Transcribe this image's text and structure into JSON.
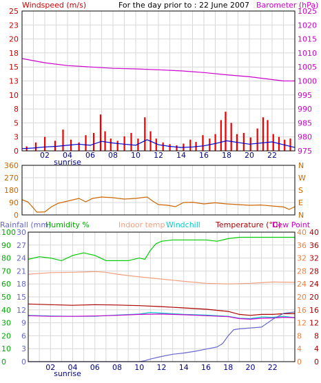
{
  "chart_data": [
    {
      "type": "line",
      "title": "For the day prior to : 22 June 2007",
      "left_axis_label": "Windspeed (m/s)",
      "right_axis_label": "Barometer (hPa)",
      "left_ticks": [
        25,
        23,
        20,
        18,
        15,
        13,
        10,
        8,
        5,
        3,
        0
      ],
      "right_ticks": [
        1025,
        1020,
        1015,
        1010,
        1005,
        1000,
        995,
        990,
        985,
        980,
        975
      ],
      "x_ticks": [
        "02",
        "04",
        "06",
        "08",
        "10",
        "12",
        "14",
        "16",
        "18",
        "20",
        "22"
      ],
      "x_sub_label": "sunrise",
      "hours_range": [
        0,
        24
      ],
      "left_range": [
        0,
        25
      ],
      "right_range": [
        975,
        1025
      ],
      "series": [
        {
          "name": "Barometer (hPa)",
          "color": "#cc00cc",
          "axis": "right",
          "x": [
            0,
            2,
            4,
            6,
            8,
            10,
            12,
            14,
            16,
            18,
            20,
            22,
            23,
            24
          ],
          "y": [
            1008,
            1006.5,
            1005.5,
            1005,
            1004.5,
            1004.3,
            1004,
            1003.6,
            1003,
            1002.2,
            1001.5,
            1000.5,
            1000,
            1000
          ]
        }
      ],
      "bars": {
        "color": "#ee0000",
        "axis": "left",
        "x": [
          0.4,
          1.2,
          2.0,
          2.9,
          3.6,
          4.3,
          5.0,
          5.6,
          6.3,
          6.9,
          7.3,
          7.8,
          8.4,
          9.0,
          9.6,
          10.2,
          10.8,
          11.3,
          11.8,
          12.4,
          13.0,
          13.6,
          14.2,
          14.8,
          15.3,
          15.9,
          16.5,
          17.0,
          17.5,
          17.9,
          18.4,
          18.9,
          19.5,
          20.1,
          20.7,
          21.2,
          21.6,
          22.1,
          22.6,
          23.1,
          23.6
        ],
        "values": [
          0.8,
          1.5,
          2.5,
          1.8,
          3.8,
          2.0,
          1.5,
          2.8,
          3.2,
          6.5,
          3.5,
          2.2,
          1.8,
          2.6,
          3.2,
          2.2,
          6.0,
          3.5,
          2.2,
          1.5,
          1.2,
          1.0,
          1.3,
          2.0,
          1.6,
          2.8,
          2.2,
          3.0,
          5.5,
          7.0,
          5.0,
          3.0,
          3.2,
          2.4,
          4.0,
          6.0,
          5.5,
          3.0,
          2.5,
          2.0,
          2.2
        ]
      },
      "avg_series": {
        "color": "#0000cc",
        "axis": "left",
        "x": [
          0,
          1,
          2,
          3,
          4,
          5,
          6,
          7,
          8,
          9,
          10,
          11,
          12,
          13,
          14,
          15,
          16,
          17,
          18,
          19,
          20,
          21,
          22,
          23,
          24
        ],
        "y": [
          0.4,
          0.5,
          0.7,
          0.8,
          1.0,
          1.2,
          1.0,
          1.7,
          1.4,
          1.2,
          1.0,
          2.0,
          1.1,
          0.8,
          0.6,
          0.7,
          0.9,
          1.3,
          1.8,
          1.5,
          1.2,
          1.4,
          1.6,
          1.1,
          0.6
        ]
      }
    },
    {
      "type": "line",
      "left_ticks": [
        360,
        270,
        180,
        90,
        0
      ],
      "right_ticks": [
        "N",
        "W",
        "S",
        "E",
        "N"
      ],
      "left_range": [
        0,
        360
      ],
      "hours_range": [
        0,
        24
      ],
      "series": [
        {
          "name": "Wind direction",
          "color": "#cc6600",
          "x": [
            0,
            0.5,
            1,
            1.3,
            2,
            2.6,
            3.2,
            4,
            5,
            5.6,
            6.2,
            7,
            8,
            9,
            10,
            11,
            11.5,
            12,
            12.8,
            13.5,
            14.2,
            15,
            16,
            17,
            18,
            19,
            20,
            21,
            22,
            23,
            23.5,
            24
          ],
          "y": [
            110,
            95,
            50,
            20,
            22,
            60,
            85,
            100,
            120,
            95,
            120,
            130,
            125,
            115,
            120,
            130,
            100,
            75,
            70,
            60,
            90,
            92,
            80,
            88,
            80,
            75,
            70,
            72,
            65,
            58,
            40,
            60
          ]
        }
      ]
    },
    {
      "type": "line",
      "left_axis_label": "Rainfall (mm)",
      "humidity_label": "Humidity %",
      "indoor_label": "Indoor temp",
      "windchill_label": "Windchill",
      "temperature_label": "Temperature (°C)",
      "dewpoint_label": "Dew Point",
      "rain_ticks": [
        30,
        27,
        24,
        21,
        18,
        15,
        12,
        9,
        6,
        3,
        0
      ],
      "humidity_ticks": [
        100,
        90,
        80,
        70,
        60,
        50,
        40,
        30,
        20,
        10,
        0
      ],
      "temp_left_ticks": [
        40,
        36,
        32,
        28,
        24,
        20,
        16,
        12,
        8,
        4,
        0
      ],
      "temp_right_ticks": [
        40,
        36,
        32,
        28,
        24,
        20,
        16,
        12,
        8,
        4,
        0
      ],
      "x_ticks": [
        "02",
        "04",
        "06",
        "08",
        "10",
        "12",
        "14",
        "16",
        "18",
        "20",
        "22"
      ],
      "x_sub_label": "sunrise",
      "hours_range": [
        0,
        24
      ],
      "humidity_range": [
        0,
        100
      ],
      "temp_range": [
        0,
        40
      ],
      "series": [
        {
          "name": "Humidity %",
          "color": "#00cc00",
          "scale": "humidity",
          "x": [
            0,
            1,
            2,
            3,
            4,
            5,
            6,
            7,
            8,
            9,
            10,
            10.5,
            11,
            11.5,
            12,
            13,
            14,
            15,
            16,
            17,
            18,
            19,
            20,
            21,
            22,
            23,
            24
          ],
          "y": [
            79,
            81,
            80,
            78,
            82,
            84,
            82,
            78,
            78,
            78,
            80,
            79,
            86,
            91,
            93,
            94,
            94,
            94,
            94,
            93,
            95,
            96,
            96,
            96,
            96,
            96,
            96
          ]
        },
        {
          "name": "Indoor temp",
          "color": "#f0a080",
          "scale": "temp",
          "x": [
            0,
            2,
            4,
            6,
            7,
            8,
            10,
            12,
            14,
            16,
            18,
            20,
            22,
            24
          ],
          "y": [
            27.0,
            27.5,
            27.6,
            27.8,
            27.6,
            27.0,
            26.2,
            25.5,
            24.8,
            24.2,
            24.0,
            24.2,
            24.6,
            24.5
          ]
        },
        {
          "name": "Temperature (°C)",
          "color": "#aa0000",
          "scale": "temp",
          "x": [
            0,
            2,
            4,
            6,
            8,
            10,
            12,
            14,
            16,
            18,
            19,
            20,
            21,
            22,
            23,
            24
          ],
          "y": [
            17.8,
            17.6,
            17.4,
            17.6,
            17.5,
            17.3,
            17.0,
            16.6,
            16.2,
            15.5,
            14.6,
            14.3,
            14.6,
            14.6,
            14.8,
            14.8
          ]
        },
        {
          "name": "Windchill",
          "color": "#00cccc",
          "scale": "temp",
          "x": [
            0,
            2,
            4,
            6,
            8,
            10,
            11,
            12,
            14,
            16,
            18,
            19,
            20,
            21,
            22,
            23,
            24
          ],
          "y": [
            14.3,
            14.1,
            14.0,
            14.0,
            14.4,
            14.7,
            15.2,
            15.0,
            14.6,
            14.4,
            14.0,
            13.4,
            13.3,
            13.8,
            13.7,
            14.0,
            13.6
          ]
        },
        {
          "name": "Dew Point",
          "color": "#cc00cc",
          "scale": "temp",
          "x": [
            0,
            2,
            4,
            6,
            8,
            10,
            12,
            14,
            16,
            18,
            19,
            20,
            21,
            22,
            23,
            24
          ],
          "y": [
            14.2,
            14.0,
            14.0,
            14.1,
            14.3,
            14.6,
            14.7,
            14.5,
            14.2,
            13.9,
            13.3,
            13.1,
            13.4,
            13.5,
            13.7,
            13.6
          ]
        },
        {
          "name": "Rainfall (mm)",
          "color": "#6666cc",
          "scale": "rain",
          "x": [
            0,
            2,
            4,
            6,
            8,
            10,
            10.5,
            11,
            12,
            13,
            14,
            15,
            16,
            17,
            17.5,
            18,
            18.5,
            19,
            20,
            21,
            22,
            23,
            24
          ],
          "y": [
            0,
            0,
            0,
            0,
            0,
            0,
            0.2,
            0.6,
            1.2,
            1.7,
            2.0,
            2.4,
            2.9,
            3.4,
            4.2,
            6.0,
            7.4,
            7.6,
            7.8,
            8.0,
            9.8,
            11.2,
            11.5
          ]
        }
      ]
    }
  ]
}
